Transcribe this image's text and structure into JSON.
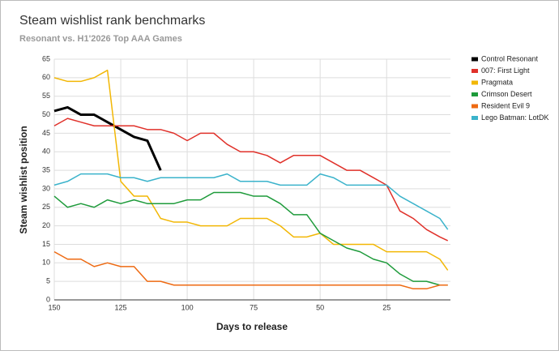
{
  "chart_data": {
    "type": "line",
    "title": "Steam wishlist rank benchmarks",
    "subtitle": "Resonant vs. H1'2026 Top AAA Games",
    "x_label": "Days to release",
    "y_label": "Steam wishlist position",
    "x": [
      150,
      145,
      140,
      135,
      130,
      125,
      120,
      115,
      110,
      105,
      100,
      95,
      90,
      85,
      80,
      75,
      70,
      65,
      60,
      55,
      50,
      45,
      40,
      35,
      30,
      25,
      20,
      15,
      10,
      5,
      2
    ],
    "xlim": [
      150,
      1
    ],
    "xticks": [
      150,
      125,
      100,
      75,
      50,
      25
    ],
    "ylim": [
      0,
      65
    ],
    "yticks": [
      0,
      5,
      10,
      15,
      20,
      25,
      30,
      35,
      40,
      45,
      50,
      55,
      60,
      65
    ],
    "grid": true,
    "legend": "right",
    "series": [
      {
        "name": "Control Resonant",
        "color": "#000000",
        "values": [
          51,
          52,
          50,
          50,
          48,
          46,
          44,
          43,
          35,
          null,
          null,
          null,
          null,
          null,
          null,
          null,
          null,
          null,
          null,
          null,
          null,
          null,
          null,
          null,
          null,
          null,
          null,
          null,
          null,
          null,
          null
        ]
      },
      {
        "name": "007: First Light",
        "color": "#e0312a",
        "values": [
          47,
          49,
          48,
          47,
          47,
          47,
          47,
          46,
          46,
          45,
          43,
          45,
          45,
          42,
          40,
          40,
          39,
          37,
          39,
          39,
          39,
          37,
          35,
          35,
          33,
          31,
          24,
          22,
          19,
          17,
          16
        ]
      },
      {
        "name": "Pragmata",
        "color": "#f2b705",
        "values": [
          60,
          59,
          59,
          60,
          62,
          32,
          28,
          28,
          22,
          21,
          21,
          20,
          20,
          20,
          22,
          22,
          22,
          20,
          17,
          17,
          18,
          15,
          15,
          15,
          15,
          13,
          13,
          13,
          13,
          11,
          8
        ]
      },
      {
        "name": "Crimson Desert",
        "color": "#1e9b3b",
        "values": [
          28,
          25,
          26,
          25,
          27,
          26,
          27,
          26,
          26,
          26,
          27,
          27,
          29,
          29,
          29,
          28,
          28,
          26,
          23,
          23,
          18,
          16,
          14,
          13,
          11,
          10,
          7,
          5,
          5,
          4,
          4
        ]
      },
      {
        "name": "Resident Evil 9",
        "color": "#ee6a12",
        "values": [
          13,
          11,
          11,
          9,
          10,
          9,
          9,
          5,
          5,
          4,
          4,
          4,
          4,
          4,
          4,
          4,
          4,
          4,
          4,
          4,
          4,
          4,
          4,
          4,
          4,
          4,
          4,
          3,
          3,
          4,
          4
        ]
      },
      {
        "name": "Lego Batman: LotDK",
        "color": "#3bb3cb",
        "values": [
          31,
          32,
          34,
          34,
          34,
          33,
          33,
          32,
          33,
          33,
          33,
          33,
          33,
          34,
          32,
          32,
          32,
          31,
          31,
          31,
          34,
          33,
          31,
          31,
          31,
          31,
          28,
          26,
          24,
          22,
          19
        ]
      }
    ]
  }
}
